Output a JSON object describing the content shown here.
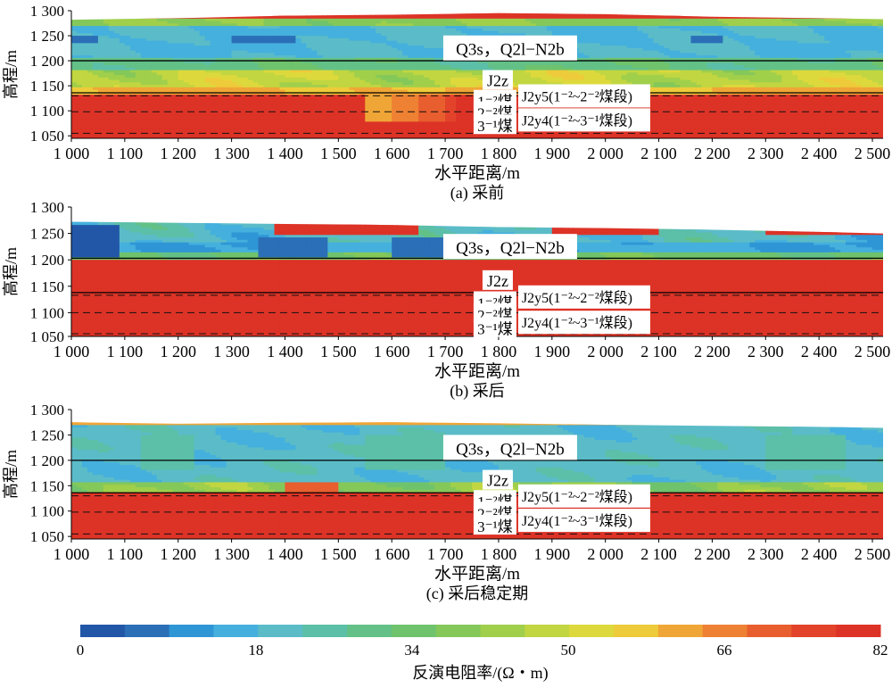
{
  "chart_data": [
    {
      "type": "heatmap",
      "panel_label": "(a) 采前",
      "xlabel": "水平距离/m",
      "ylabel": "高程/m",
      "xlim": [
        1000,
        2520
      ],
      "ylim": [
        1045,
        1300
      ],
      "x_ticks": [
        "1 000",
        "1 100",
        "1 200",
        "1 300",
        "1 400",
        "1 500",
        "1 600",
        "1 700",
        "1 800",
        "1 900",
        "2 000",
        "2 100",
        "2 200",
        "2 300",
        "2 400",
        "2 500"
      ],
      "y_ticks": [
        "1 050",
        "1 100",
        "1 150",
        "1 200",
        "1 250",
        "1 300"
      ],
      "boundary_lines": {
        "solid": [
          1200,
          1136
        ],
        "dashed": [
          1130,
          1098,
          1055
        ]
      },
      "annotations": {
        "upper": "Q3s，Q2l−N2b",
        "j2z": "J2z",
        "coal_1": "1⁻²煤",
        "coal_2": "2⁻²煤",
        "coal_3": "3⁻¹煤",
        "j2y5": "J2y5(1⁻²~2⁻²煤段)",
        "j2y4": "J2y4(1⁻²~3⁻¹煤段)"
      },
      "profile_note": "resistivity (Ω·m) vs elevation: low ~10–25 in Quaternary cover, rising to ~82 below 1 130 m; low-resistivity wedge near 1 550–1 700 m",
      "surface_top": [
        [
          1000,
          1282
        ],
        [
          1200,
          1285
        ],
        [
          1400,
          1290
        ],
        [
          1600,
          1292
        ],
        [
          1800,
          1295
        ],
        [
          2000,
          1293
        ],
        [
          2200,
          1288
        ],
        [
          2400,
          1285
        ],
        [
          2520,
          1283
        ]
      ]
    },
    {
      "type": "heatmap",
      "panel_label": "(b) 采后",
      "xlabel": "水平距离/m",
      "ylabel": "高程/m",
      "xlim": [
        1000,
        2520
      ],
      "ylim": [
        1055,
        1300
      ],
      "x_ticks": [
        "1 000",
        "1 100",
        "1 200",
        "1 300",
        "1 400",
        "1 500",
        "1 600",
        "1 700",
        "1 800",
        "1 900",
        "2 000",
        "2 100",
        "2 200",
        "2 300",
        "2 400",
        "2 500"
      ],
      "y_ticks": [
        "1 050",
        "1 100",
        "1 150",
        "1 200",
        "1 250",
        "1 300"
      ],
      "boundary_lines": {
        "solid": [
          1203,
          1138
        ],
        "dashed": [
          1133,
          1100,
          1060
        ]
      },
      "annotations": {
        "upper": "Q3s，Q2l−N2b",
        "j2z": "J2z",
        "coal_1": "1⁻²煤",
        "coal_2": "2⁻²煤",
        "coal_3": "3⁻¹煤",
        "j2y5": "J2y5(1⁻²~2⁻²煤段)",
        "j2y4": "J2y4(1⁻²~3⁻¹煤段)"
      },
      "profile_note": "resistivity increases after mining: red (~82 Ω·m) dominates below 1 190 m; isolated low-resistivity lenses at 1 000–1 100 m and 1 600–1 800 m",
      "surface_top": [
        [
          1000,
          1272
        ],
        [
          1200,
          1270
        ],
        [
          1400,
          1268
        ],
        [
          1600,
          1266
        ],
        [
          1800,
          1262
        ],
        [
          2000,
          1260
        ],
        [
          2200,
          1257
        ],
        [
          2400,
          1253
        ],
        [
          2520,
          1250
        ]
      ]
    },
    {
      "type": "heatmap",
      "panel_label": "(c) 采后稳定期",
      "xlabel": "水平距离/m",
      "ylabel": "高程/m",
      "xlim": [
        1000,
        2520
      ],
      "ylim": [
        1045,
        1300
      ],
      "x_ticks": [
        "1 000",
        "1 100",
        "1 200",
        "1 300",
        "1 400",
        "1 500",
        "1 600",
        "1 700",
        "1 800",
        "1 900",
        "2 000",
        "2 100",
        "2 200",
        "2 300",
        "2 400",
        "2 500"
      ],
      "y_ticks": [
        "1 050",
        "1 100",
        "1 150",
        "1 200",
        "1 250",
        "1 300"
      ],
      "boundary_lines": {
        "solid": [
          1200,
          1136
        ],
        "dashed": [
          1130,
          1098,
          1055
        ]
      },
      "annotations": {
        "upper": "Q3s，Q2l−N2b",
        "j2z": "J2z",
        "coal_1": "1⁻²煤",
        "coal_2": "2⁻²煤",
        "coal_3": "3⁻¹煤",
        "j2y5": "J2y5(1⁻²~2⁻²煤段)",
        "j2y4": "J2y4(1⁻²~3⁻¹煤段)"
      },
      "profile_note": "stabilized: low-resistivity blue layer above 1 160 m, red layer below 1 130 m",
      "surface_top": [
        [
          1000,
          1275
        ],
        [
          1200,
          1272
        ],
        [
          1400,
          1274
        ],
        [
          1600,
          1275
        ],
        [
          1800,
          1273
        ],
        [
          2000,
          1270
        ],
        [
          2200,
          1268
        ],
        [
          2400,
          1266
        ],
        [
          2520,
          1264
        ]
      ]
    }
  ],
  "colorbar": {
    "title": "反演电阻率/(Ω・m)",
    "ticks": [
      "0",
      "18",
      "34",
      "50",
      "66",
      "82"
    ],
    "range": [
      0,
      82
    ],
    "colors": [
      "#2257a8",
      "#2b6fb7",
      "#2f96d6",
      "#45b0dd",
      "#5bbcc8",
      "#5cbfa8",
      "#63c187",
      "#6fc36c",
      "#84c85a",
      "#a0cf4b",
      "#c1d640",
      "#ddd93c",
      "#eecb3a",
      "#f0a636",
      "#ee8133",
      "#e85e2e",
      "#e2432a",
      "#dd3327"
    ]
  }
}
